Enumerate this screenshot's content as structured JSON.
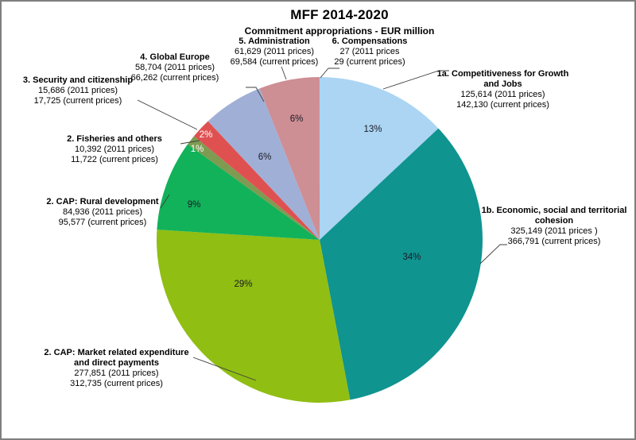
{
  "title": "MFF 2014-2020",
  "subtitle": "Commitment appropriations - EUR million",
  "chart_data": {
    "type": "pie",
    "title": "MFF 2014-2020",
    "subtitle": "Commitment appropriations - EUR million",
    "unit": "EUR million",
    "direction": "clockwise",
    "start_angle_deg": 0,
    "segments": [
      {
        "id": "competitiveness",
        "name": "1a. Competitiveness for Growth and Jobs",
        "name_line1": "1a. Competitiveness for Growth",
        "name_line2": "and Jobs",
        "percent": 13,
        "percent_label": "13%",
        "value_2011": 125614,
        "value_current": 142130,
        "label_2011": "125,614 (2011 prices)",
        "label_current": "142,130 (current prices)",
        "color": "#ABD5F3",
        "percent_color": "#1a1a24"
      },
      {
        "id": "cohesion",
        "name": "1b. Economic, social and territorial cohesion",
        "name_line1": "1b. Economic, social and territorial",
        "name_line2": "cohesion",
        "percent": 34,
        "percent_label": "34%",
        "value_2011": 325149,
        "value_current": 366791,
        "label_2011": "325,149 (2011 prices )",
        "label_current": "366,791 (current prices)",
        "color": "#0F9490",
        "percent_color": "#1a1a24"
      },
      {
        "id": "cap_market",
        "name": "2. CAP: Market related expenditure and direct payments",
        "name_line1": "2. CAP: Market related expenditure",
        "name_line2": "and direct payments",
        "percent": 29,
        "percent_label": "29%",
        "value_2011": 277851,
        "value_current": 312735,
        "label_2011": "277,851 (2011 prices)",
        "label_current": "312,735 (current prices)",
        "color": "#90BE13",
        "percent_color": "#1a1a24"
      },
      {
        "id": "cap_rural",
        "name": "2. CAP: Rural development",
        "name_line1": "2. CAP: Rural development",
        "name_line2": "",
        "percent": 9,
        "percent_label": "9%",
        "value_2011": 84936,
        "value_current": 95577,
        "label_2011": "84,936 (2011 prices)",
        "label_current": "95,577 (current prices)",
        "color": "#12B25A",
        "percent_color": "#1a1a24"
      },
      {
        "id": "fisheries",
        "name": "2. Fisheries and others",
        "name_line1": "2. Fisheries and others",
        "name_line2": "",
        "percent": 1,
        "percent_label": "1%",
        "value_2011": 10392,
        "value_current": 11722,
        "label_2011": "10,392 (2011 prices)",
        "label_current": "11,722 (current prices)",
        "color": "#7E9B51",
        "percent_color": "#ffffff"
      },
      {
        "id": "security",
        "name": "3. Security and citizenship",
        "name_line1": "3. Security and citizenship",
        "name_line2": "",
        "percent": 2,
        "percent_label": "2%",
        "value_2011": 15686,
        "value_current": 17725,
        "label_2011": "15,686 (2011 prices)",
        "label_current": "17,725 (current prices)",
        "color": "#DF5151",
        "percent_color": "#ffffff"
      },
      {
        "id": "global_europe",
        "name": "4. Global Europe",
        "name_line1": "4. Global Europe",
        "name_line2": "",
        "percent": 6,
        "percent_label": "6%",
        "value_2011": 58704,
        "value_current": 66262,
        "label_2011": "58,704 (2011 prices)",
        "label_current": "66,262 (current prices)",
        "color": "#A0AFD6",
        "percent_color": "#1a1a24"
      },
      {
        "id": "administration",
        "name": "5. Administration",
        "name_line1": "5. Administration",
        "name_line2": "",
        "percent": 6,
        "percent_label": "6%",
        "value_2011": 61629,
        "value_current": 69584,
        "label_2011": "61,629 (2011 prices)",
        "label_current": "69,584 (current prices)",
        "color": "#CD8E94",
        "percent_color": "#1a1a24"
      },
      {
        "id": "compensations",
        "name": "6. Compensations",
        "name_line1": "6. Compensations",
        "name_line2": "",
        "percent": 0.003,
        "percent_label": "",
        "value_2011": 27,
        "value_current": 29,
        "label_2011": "27 (2011 prices",
        "label_current": "29 (current prices)",
        "color": "#E8EEF7",
        "percent_color": "#1a1a24"
      }
    ]
  }
}
